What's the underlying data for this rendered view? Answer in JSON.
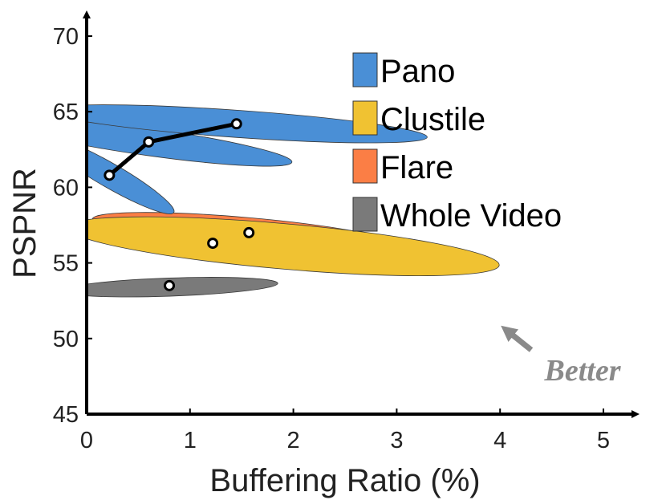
{
  "chart_data": {
    "type": "scatter",
    "title": "",
    "xlabel": "Buffering Ratio (%)",
    "ylabel": "PSPNR",
    "xlim": [
      0,
      5
    ],
    "ylim": [
      45,
      70
    ],
    "xticks": [
      "0",
      "1",
      "2",
      "3",
      "4",
      "5"
    ],
    "yticks": [
      "45",
      "50",
      "55",
      "60",
      "65",
      "70"
    ],
    "grid": false,
    "legend_position": "top-right",
    "annotation": "Better",
    "colors": {
      "Pano": "#4a8fd6",
      "Clustile": "#f0c232",
      "Flare": "#fb7e45",
      "Whole Video": "#7a7a7a"
    },
    "series": [
      {
        "name": "Whole Video",
        "points": [
          {
            "x": 0.8,
            "y": 53.5
          }
        ],
        "ellipses": [
          {
            "cx": 0.8,
            "cy": 53.4,
            "rx": 1.05,
            "ry": 0.6,
            "angle_deg": -2
          }
        ]
      },
      {
        "name": "Flare",
        "points": [
          {
            "x": 1.57,
            "y": 57.0
          }
        ],
        "ellipses": [
          {
            "cx": 1.55,
            "cy": 57.0,
            "rx": 1.5,
            "ry": 1.0,
            "angle_deg": 5
          }
        ]
      },
      {
        "name": "Clustile",
        "points": [
          {
            "x": 1.22,
            "y": 56.3
          }
        ],
        "ellipses": [
          {
            "cx": 1.9,
            "cy": 56.1,
            "rx": 2.1,
            "ry": 1.5,
            "angle_deg": 5
          }
        ]
      },
      {
        "name": "Pano",
        "points": [
          {
            "x": 0.22,
            "y": 60.8
          },
          {
            "x": 0.6,
            "y": 63.0
          },
          {
            "x": 1.45,
            "y": 64.2
          }
        ],
        "ellipses": [
          {
            "cx": 0.22,
            "cy": 60.8,
            "rx": 0.72,
            "ry": 0.8,
            "angle_deg": 30
          },
          {
            "cx": 0.6,
            "cy": 63.0,
            "rx": 1.4,
            "ry": 0.9,
            "angle_deg": 8
          },
          {
            "cx": 1.45,
            "cy": 64.2,
            "rx": 1.85,
            "ry": 0.9,
            "angle_deg": 4
          }
        ]
      }
    ],
    "legend": [
      "Pano",
      "Clustile",
      "Flare",
      "Whole Video"
    ]
  }
}
